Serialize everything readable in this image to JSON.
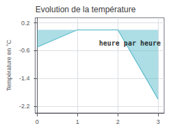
{
  "chart_data": {
    "type": "line",
    "title": "Evolution de la température",
    "ylabel": "Température en °C",
    "x": [
      0,
      1,
      2,
      3
    ],
    "values": [
      -0.5,
      0.0,
      0.0,
      -2.0
    ],
    "color": "#5bbccc",
    "xlim": [
      -0.05,
      3.15
    ],
    "ylim": [
      -2.4,
      0.35
    ],
    "xticks": [
      0,
      1,
      2,
      3
    ],
    "yticks": [
      0.2,
      -0.6,
      -1.4,
      -2.2
    ],
    "grid": true,
    "annotations": [
      {
        "text": "heure par heure",
        "x": 2.3,
        "y": -0.38
      }
    ]
  }
}
